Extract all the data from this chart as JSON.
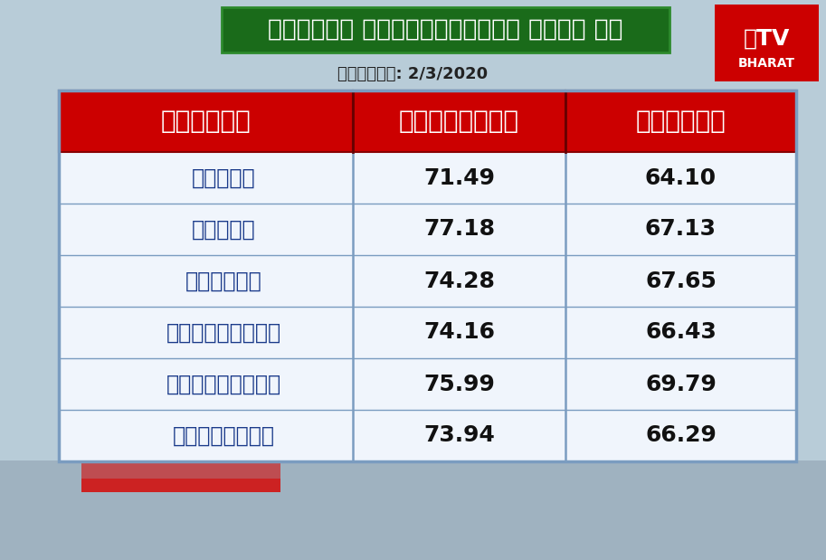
{
  "title": "ಮೆಟ್ರೋ ಸಿಟಿಗಳಲ್ಲಿನ ಇಂಧನ ದರ",
  "date_label": "ದಿನಾಂಕ: 2/3/2020",
  "col1_header": "ನಗರಗಳು",
  "col2_header": "ಪೆಟ್ರೋಲ್",
  "col3_header": "ಡೀಸೆಲ್",
  "cities": [
    "ದೆಹಳಿ",
    "ಮುಂಬೈ",
    "ಚೆನ್ನೈ",
    "ಕೋಲ್ಕತ್ತಾ",
    "ಹೈದರಾಬಾದ್",
    "ಬೆಂಗಳೂರು"
  ],
  "petrol": [
    71.49,
    77.18,
    74.28,
    74.16,
    75.99,
    73.94
  ],
  "diesel": [
    64.1,
    67.13,
    67.65,
    66.43,
    69.79,
    66.29
  ],
  "bg_color": "#b8ccd8",
  "header_bg": "#cc0000",
  "title_bg": "#1a6b1a",
  "title_border": "#2d8a2d",
  "title_color": "#ffffff",
  "header_text_color": "#ffffff",
  "city_text_color": "#1a3a8a",
  "value_text_color": "#111111",
  "table_border_color": "#7a9cc0",
  "table_bg": "#f0f5fc",
  "bottom_bar_color": "#cc3333",
  "logo_bg": "#cc0000",
  "figsize": [
    9.13,
    6.19
  ],
  "dpi": 100
}
